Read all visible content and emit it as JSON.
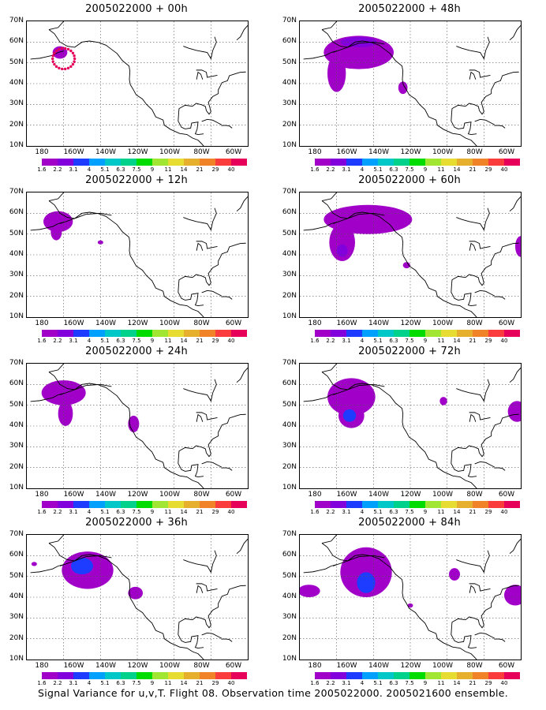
{
  "caption": "Signal Variance for u,v,T. Flight 08. Observation time 2005022000. 2005021600 ensemble.",
  "lat_labels": [
    "70N",
    "60N",
    "50N",
    "40N",
    "30N",
    "20N",
    "10N"
  ],
  "lon_labels": [
    "180",
    "160W",
    "140W",
    "120W",
    "100W",
    "80W",
    "60W"
  ],
  "colorbar": {
    "colors": [
      "#a000c8",
      "#8200dc",
      "#1e3cff",
      "#00a0ff",
      "#00c8c8",
      "#00d28c",
      "#00dc00",
      "#a0e632",
      "#e6dc32",
      "#e6af2d",
      "#f08228",
      "#fa3c3c",
      "#e6005a"
    ],
    "labels": [
      "1.6",
      "2.2",
      "3.1",
      "4",
      "5.1",
      "6.3",
      "7.5",
      "9",
      "11",
      "14",
      "21",
      "29",
      "40"
    ]
  },
  "panels": [
    {
      "title": "2005022000 + 00h"
    },
    {
      "title": "2005022000 + 48h"
    },
    {
      "title": "2005022000 + 12h"
    },
    {
      "title": "2005022000 + 60h"
    },
    {
      "title": "2005022000 + 24h"
    },
    {
      "title": "2005022000 + 72h"
    },
    {
      "title": "2005022000 + 36h"
    },
    {
      "title": "2005022000 + 84h"
    }
  ]
}
